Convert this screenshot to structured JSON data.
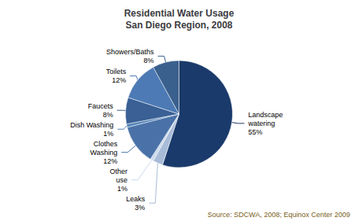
{
  "chart_data": {
    "type": "pie",
    "title": "Residential Water Usage\nSan Diego Region, 2008",
    "categories": [
      "Landscape\nwatering",
      "Leaks",
      "Other\nuse",
      "Clothes\nWashing",
      "Dish Washing",
      "Faucets",
      "Toilets",
      "Showers/Baths"
    ],
    "values": [
      55,
      3,
      1,
      12,
      1,
      8,
      12,
      8
    ],
    "value_labels": [
      "55%",
      "3%",
      "1%",
      "12%",
      "1%",
      "8%",
      "12%",
      "8%"
    ],
    "colors": [
      "#1a3a6b",
      "#a8bcd8",
      "#ccdaeb",
      "#4a72a8",
      "#5585b8",
      "#3a6095",
      "#4d7ab5",
      "#3a608e"
    ],
    "data_labels": true,
    "annotations": [
      {
        "text": "Source: SDCWA, 2008; Equinox Center 2009",
        "color": "#7a6020"
      }
    ]
  }
}
